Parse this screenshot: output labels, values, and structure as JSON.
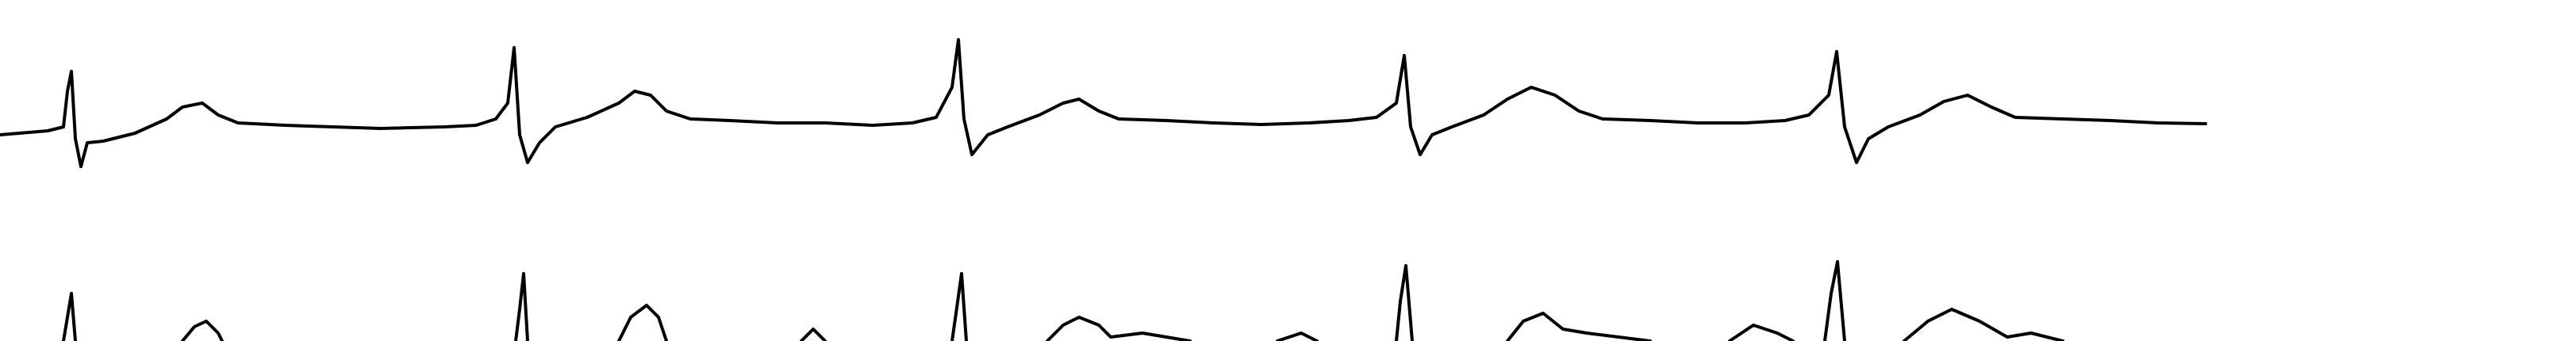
{
  "leads": [
    {
      "label": "",
      "beats": [
        {
          "p_peak_fraction": 0.0
        },
        {
          "p_peak_fraction": 0.0
        },
        {
          "p_peak_fraction": 0.0
        },
        {
          "p_peak_fraction": 0.0
        },
        {
          "p_peak_fraction": 0.0
        }
      ]
    },
    {
      "label": "",
      "beats": [
        {
          "p_peak_fraction": 0.0
        },
        {
          "p_peak_fraction": 0.0
        },
        {
          "p_peak_fraction": 0.0
        },
        {
          "p_peak_fraction": 0.0
        },
        {
          "p_peak_fraction": 0.0
        }
      ]
    }
  ],
  "colors": {
    "background": "#ffffff",
    "trace": "#000000"
  }
}
